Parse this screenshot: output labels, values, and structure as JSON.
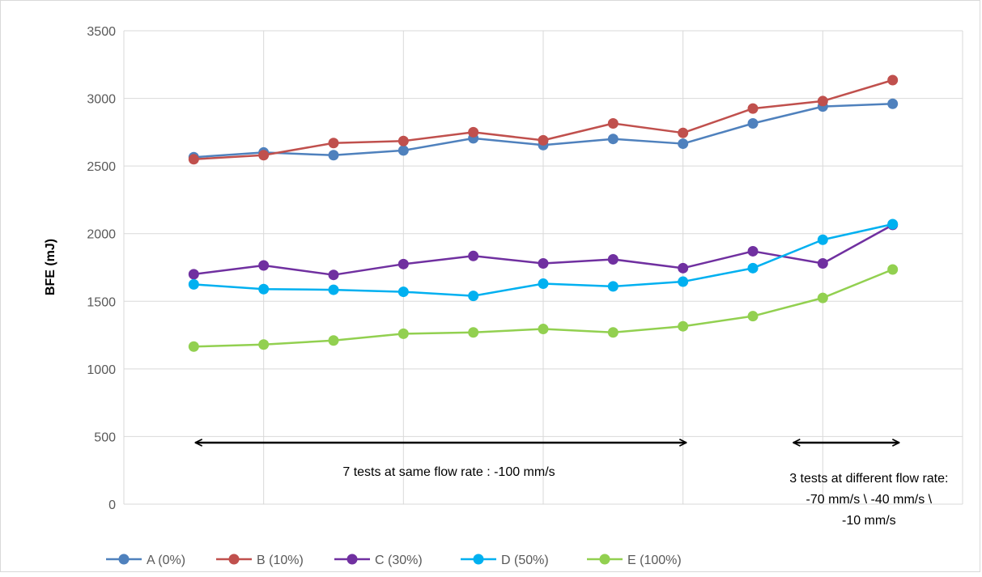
{
  "chart_data": {
    "type": "line",
    "title": "",
    "xlabel": "",
    "ylabel": "BFE (mJ)",
    "ylim": [
      0,
      3500
    ],
    "yticks": [
      0,
      500,
      1000,
      1500,
      2000,
      2500,
      3000,
      3500
    ],
    "x": [
      1,
      2,
      3,
      4,
      5,
      6,
      7,
      8,
      9,
      10,
      11
    ],
    "grid": true,
    "legend_position": "bottom",
    "series": [
      {
        "name": "A (0%)",
        "color": "#4f81bd",
        "values": [
          2565,
          2600,
          2580,
          2615,
          2705,
          2655,
          2700,
          2665,
          2815,
          2940,
          2960
        ]
      },
      {
        "name": "B (10%)",
        "color": "#c0504d",
        "values": [
          2550,
          2580,
          2670,
          2685,
          2750,
          2690,
          2815,
          2745,
          2925,
          2980,
          3135
        ]
      },
      {
        "name": "C (30%)",
        "color": "#7030a0",
        "values": [
          1700,
          1765,
          1695,
          1775,
          1835,
          1780,
          1810,
          1745,
          1870,
          1780,
          2065
        ]
      },
      {
        "name": "D (50%)",
        "color": "#00b0f0",
        "values": [
          1625,
          1590,
          1585,
          1570,
          1540,
          1630,
          1610,
          1645,
          1745,
          1955,
          2070
        ]
      },
      {
        "name": "E (100%)",
        "color": "#92d050",
        "values": [
          1165,
          1180,
          1210,
          1260,
          1270,
          1295,
          1270,
          1315,
          1390,
          1525,
          1735
        ]
      }
    ],
    "annotations": [
      {
        "text_lines": [
          "7 tests at same flow rate : -100 mm/s"
        ],
        "x_from": 1,
        "x_to": 8
      },
      {
        "text_lines": [
          "3 tests at different flow rate:",
          "-70 mm/s \\ -40 mm/s \\",
          "-10 mm/s"
        ],
        "x_from": 9,
        "x_to": 11
      }
    ]
  }
}
